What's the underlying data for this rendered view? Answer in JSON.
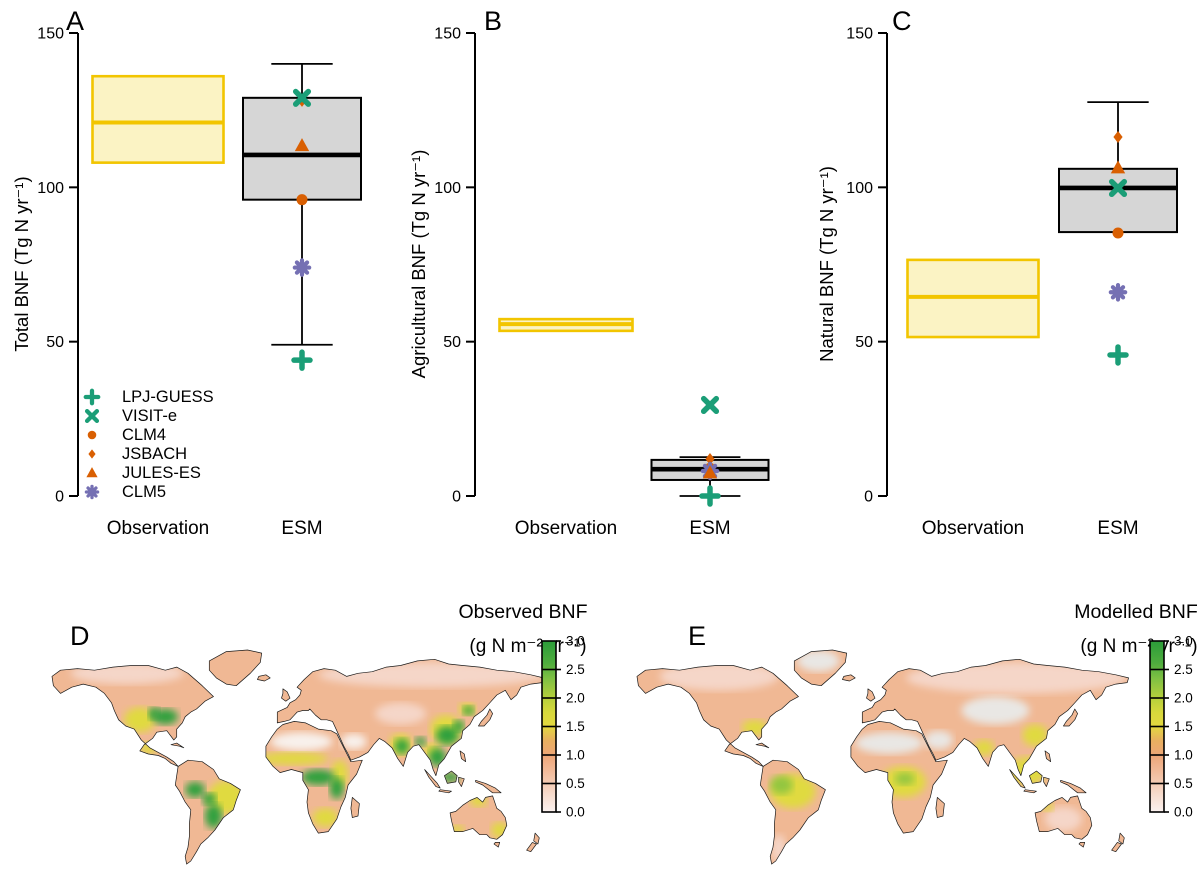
{
  "legend": {
    "items": [
      {
        "label": "LPJ-GUESS",
        "symbol": "plus",
        "color": "#1B9E77"
      },
      {
        "label": "VISIT-e",
        "symbol": "cross",
        "color": "#1B9E77"
      },
      {
        "label": "CLM4",
        "symbol": "circle",
        "color": "#D95F02"
      },
      {
        "label": "JSBACH",
        "symbol": "diamond",
        "color": "#D95F02"
      },
      {
        "label": "JULES-ES",
        "symbol": "triangle",
        "color": "#D95F02"
      },
      {
        "label": "CLM5",
        "symbol": "star",
        "color": "#7570B3"
      }
    ]
  },
  "colors": {
    "model_green": "#1B9E77",
    "model_orange": "#D95F02",
    "model_purple": "#7570B3",
    "obs_box_fill": "#FBF3C4",
    "obs_box_border": "#F2C500",
    "esm_box_fill": "#D6D6D6",
    "esm_box_border": "#000000",
    "map_base": "#F0B894",
    "map_pale": "#F5D6C8",
    "map_sand": "#F8F1EC",
    "map_gray": "#E9E7E4",
    "map_yellow": "#E0DA3F",
    "map_green": "#2FA03C",
    "map_yellowgreen": "#93C63F"
  },
  "chart_data": [
    {
      "panel": "A",
      "type": "boxplot",
      "ylabel": "Total BNF (Tg  N  yr⁻¹)",
      "ylim": [
        0,
        150
      ],
      "yticks": [
        0,
        50,
        100,
        150
      ],
      "categories": [
        "Observation",
        "ESM"
      ],
      "boxes": {
        "observation": {
          "q1": 108,
          "median": 121,
          "q3": 136
        },
        "esm": {
          "whisker_low": 49,
          "q1": 96,
          "median": 110.5,
          "q3": 129,
          "whisker_high": 140
        }
      },
      "points": [
        {
          "model": "CLM4",
          "value": 96
        },
        {
          "model": "JSBACH",
          "value": 128
        },
        {
          "model": "CLM5",
          "value": 74
        },
        {
          "model": "JULES-ES",
          "value": 113.5
        },
        {
          "model": "VISIT-e",
          "value": 129
        },
        {
          "model": "LPJ-GUESS",
          "value": 44
        }
      ]
    },
    {
      "panel": "B",
      "type": "boxplot",
      "ylabel": "Agricultural BNF (Tg  N  yr⁻¹)",
      "ylim": [
        0,
        150
      ],
      "yticks": [
        0,
        50,
        100,
        150
      ],
      "categories": [
        "Observation",
        "ESM"
      ],
      "boxes": {
        "observation": {
          "q1": 53.5,
          "median": 55.7,
          "q3": 57.3
        },
        "esm": {
          "whisker_low": 0,
          "q1": 5.2,
          "median": 8.7,
          "q3": 11.7,
          "whisker_high": 12.6
        }
      },
      "points": [
        {
          "model": "CLM4",
          "value": 9
        },
        {
          "model": "JSBACH",
          "value": 12
        },
        {
          "model": "CLM5",
          "value": 8.1
        },
        {
          "model": "JULES-ES",
          "value": 7.5
        },
        {
          "model": "VISIT-e",
          "value": 29.5
        },
        {
          "model": "LPJ-GUESS",
          "value": 0
        }
      ]
    },
    {
      "panel": "C",
      "type": "boxplot",
      "ylabel": "Natural BNF (Tg  N  yr⁻¹)",
      "ylim": [
        0,
        150
      ],
      "yticks": [
        0,
        50,
        100,
        150
      ],
      "categories": [
        "Observation",
        "ESM"
      ],
      "boxes": {
        "observation": {
          "q1": 51.5,
          "median": 64.5,
          "q3": 76.5
        },
        "esm": {
          "q1": 85.5,
          "median": 99.8,
          "q3": 106,
          "whisker_high": 127.6
        }
      },
      "points": [
        {
          "model": "CLM4",
          "value": 85.2
        },
        {
          "model": "JSBACH",
          "value": 116.3
        },
        {
          "model": "CLM5",
          "value": 66
        },
        {
          "model": "JULES-ES",
          "value": 106.3
        },
        {
          "model": "VISIT-e",
          "value": 99.8
        },
        {
          "model": "LPJ-GUESS",
          "value": 45.7
        }
      ]
    },
    {
      "panel": "D",
      "type": "heatmap",
      "title": "Observed BNF",
      "units": "(g N m⁻² yr⁻¹)",
      "colorbar": {
        "min": 0.0,
        "max": 3.0,
        "tick_labels": [
          "3.0",
          "2.5",
          "2.0",
          "1.5",
          "1.0",
          "0.5",
          "0.0"
        ]
      }
    },
    {
      "panel": "E",
      "type": "heatmap",
      "title": "Modelled BNF",
      "units": "(g N m⁻² yr⁻¹)",
      "colorbar": {
        "min": 0.0,
        "max": 3.0,
        "tick_labels": [
          "3.0",
          "2.5",
          "2.0",
          "1.5",
          "1.0",
          "0.5",
          "0.0"
        ]
      }
    }
  ]
}
